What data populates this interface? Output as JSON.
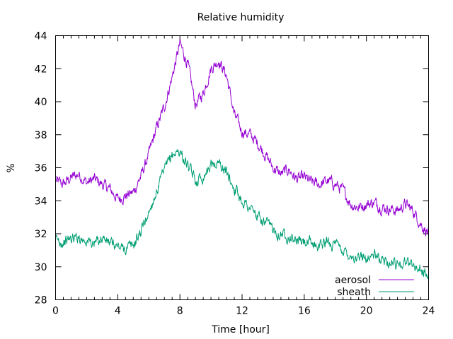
{
  "chart_data": {
    "type": "line",
    "title": "Relative humidity",
    "xlabel": "Time [hour]",
    "ylabel": "%",
    "xlim": [
      0,
      24
    ],
    "ylim": [
      28,
      44
    ],
    "xticks": [
      0,
      4,
      8,
      12,
      16,
      20,
      24
    ],
    "yticks": [
      28,
      30,
      32,
      34,
      36,
      38,
      40,
      42,
      44
    ],
    "grid": false,
    "legend_position": "bottom-right",
    "x": [
      0,
      0.5,
      1,
      1.5,
      2,
      2.5,
      3,
      3.5,
      4,
      4.5,
      5,
      5.5,
      6,
      6.5,
      7,
      7.5,
      8,
      8.5,
      9,
      9.5,
      10,
      10.5,
      11,
      11.5,
      12,
      12.5,
      13,
      13.5,
      14,
      14.5,
      15,
      15.5,
      16,
      16.5,
      17,
      17.5,
      18,
      18.5,
      19,
      19.5,
      20,
      20.5,
      21,
      21.5,
      22,
      22.5,
      23,
      23.5,
      24
    ],
    "series": [
      {
        "name": "aerosol",
        "color": "#9400d3",
        "values": [
          35.2,
          35.0,
          35.4,
          35.6,
          35.1,
          35.3,
          35.0,
          34.7,
          34.1,
          34.3,
          34.5,
          35.5,
          36.8,
          38.4,
          39.7,
          41.5,
          43.5,
          42.3,
          39.8,
          40.5,
          42.0,
          42.5,
          41.6,
          39.2,
          38.2,
          38.0,
          37.5,
          36.8,
          36.0,
          35.6,
          35.9,
          35.3,
          35.4,
          35.1,
          35.0,
          35.2,
          35.0,
          34.6,
          33.8,
          33.6,
          33.8,
          33.9,
          33.6,
          33.5,
          33.4,
          33.8,
          33.4,
          32.6,
          32.0
        ]
      },
      {
        "name": "sheath",
        "color": "#009e73",
        "values": [
          31.6,
          31.5,
          31.7,
          31.8,
          31.6,
          31.4,
          31.8,
          31.4,
          31.2,
          31.1,
          31.3,
          32.2,
          33.3,
          34.6,
          35.8,
          36.8,
          37.0,
          36.1,
          35.2,
          35.5,
          36.2,
          36.3,
          35.7,
          34.8,
          34.0,
          33.6,
          33.0,
          32.6,
          32.3,
          32.0,
          31.9,
          31.6,
          31.5,
          31.4,
          31.3,
          31.5,
          31.3,
          31.0,
          30.7,
          30.5,
          30.6,
          30.7,
          30.4,
          30.3,
          30.2,
          30.3,
          30.1,
          29.8,
          29.4
        ]
      }
    ]
  }
}
